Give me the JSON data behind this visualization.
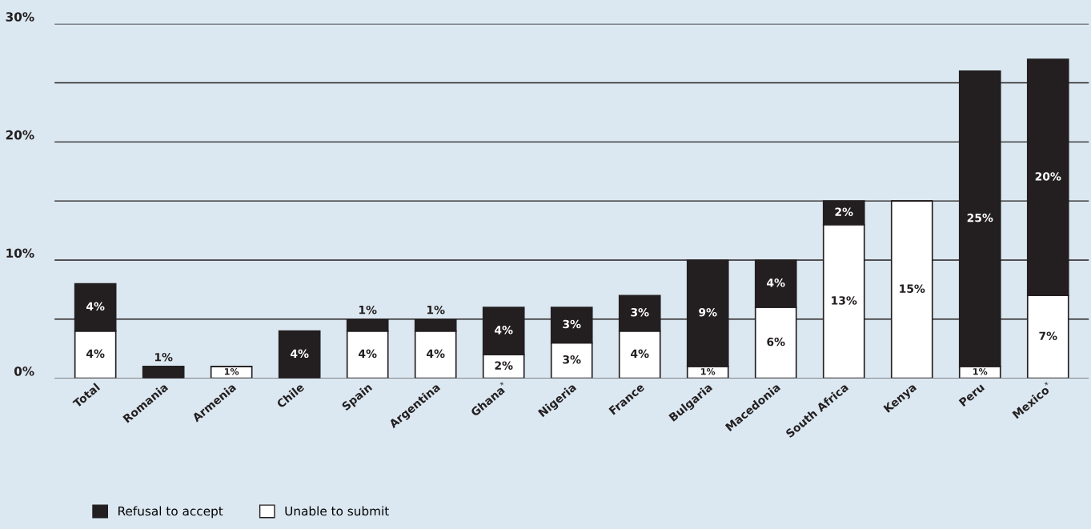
{
  "chart_data": {
    "type": "bar",
    "stacked": true,
    "categories": [
      "Total",
      "Romania",
      "Armenia",
      "Chile",
      "Spain",
      "Argentina",
      "Ghana$^{*}$",
      "Nigeria",
      "France",
      "Bulgaria",
      "Macedonia",
      "South Africa",
      "Kenya",
      "Peru",
      "Mexico$^{*}$"
    ],
    "series": [
      {
        "name": "Unable to submit",
        "color": "#ffffff",
        "values": [
          4,
          0,
          1,
          0,
          4,
          4,
          2,
          3,
          4,
          1,
          6,
          13,
          15,
          1,
          7
        ],
        "value_labels": [
          "4%",
          null,
          "1%",
          null,
          "4%",
          "4%",
          "2%",
          "3%",
          "4%",
          "1%",
          "6%",
          "13%",
          "15%",
          "1%",
          "7%"
        ]
      },
      {
        "name": "Refusal to accept",
        "color": "#231f20",
        "values": [
          4,
          1,
          0,
          4,
          1,
          1,
          4,
          3,
          3,
          9,
          4,
          2,
          0,
          25,
          20
        ],
        "value_labels": [
          "4%",
          "1%",
          null,
          "4%",
          "1%",
          "1%",
          "4%",
          "3%",
          "3%",
          "9%",
          "4%",
          "2%",
          null,
          "25%",
          "20%"
        ]
      }
    ],
    "ylim": [
      0,
      30
    ],
    "yticks": [
      {
        "value": 0,
        "label": "0%"
      },
      {
        "value": 5,
        "label": null
      },
      {
        "value": 10,
        "label": "10%"
      },
      {
        "value": 15,
        "label": null
      },
      {
        "value": 20,
        "label": "20%"
      },
      {
        "value": 25,
        "label": null
      },
      {
        "value": 30,
        "label": "30%"
      }
    ],
    "grid": "y",
    "legend": "bottom left"
  }
}
